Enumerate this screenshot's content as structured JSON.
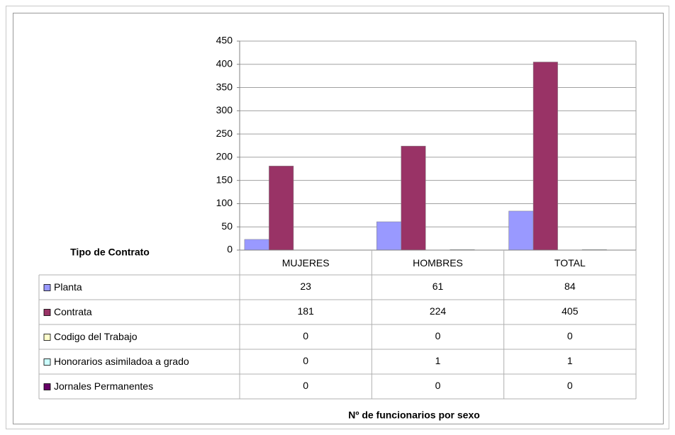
{
  "chart_data": {
    "type": "bar",
    "title": "Nº de funcionarios por sexo",
    "table_label": "Tipo de Contrato",
    "categories": [
      "MUJERES",
      "HOMBRES",
      "TOTAL"
    ],
    "series": [
      {
        "name": "Planta",
        "color": "#9999ff",
        "values": [
          23,
          61,
          84
        ]
      },
      {
        "name": "Contrata",
        "color": "#993366",
        "values": [
          181,
          224,
          405
        ]
      },
      {
        "name": "Codigo del Trabajo",
        "color": "#ffffcc",
        "values": [
          0,
          0,
          0
        ]
      },
      {
        "name": "Honorarios asimiladoa a grado",
        "color": "#ccffff",
        "values": [
          0,
          1,
          1
        ]
      },
      {
        "name": "Jornales Permanentes",
        "color": "#660066",
        "values": [
          0,
          0,
          0
        ]
      }
    ],
    "ylim": [
      0,
      450
    ],
    "yticks": [
      0,
      50,
      100,
      150,
      200,
      250,
      300,
      350,
      400,
      450
    ],
    "grid": true
  }
}
